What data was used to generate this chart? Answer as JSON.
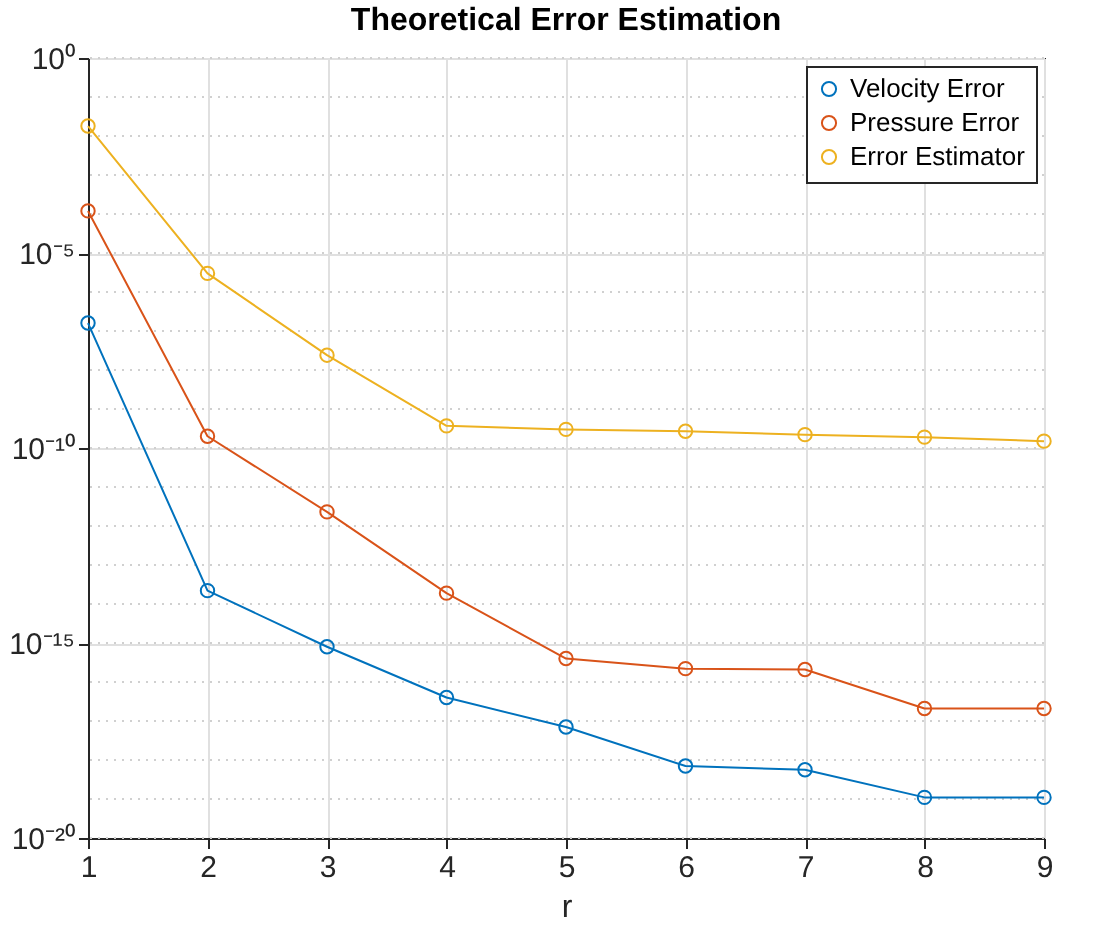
{
  "chart_data": {
    "type": "line",
    "title": "Theoretical Error Estimation",
    "xlabel": "r",
    "x": [
      1,
      2,
      3,
      4,
      5,
      6,
      7,
      8,
      9
    ],
    "series": [
      {
        "name": "Velocity Error",
        "color": "#0072bd",
        "values": [
          1.6e-07,
          2.2e-14,
          8e-16,
          4e-17,
          7e-18,
          7e-19,
          5.6e-19,
          1.1e-19,
          1.1e-19
        ]
      },
      {
        "name": "Pressure Error",
        "color": "#d95319",
        "values": [
          0.00012,
          2e-10,
          2.3e-12,
          1.9e-14,
          4e-16,
          2.2e-16,
          2.1e-16,
          2.1e-17,
          2.1e-17
        ]
      },
      {
        "name": "Error Estimator",
        "color": "#edb120",
        "values": [
          0.018,
          3e-06,
          2.4e-08,
          3.7e-10,
          3e-10,
          2.7e-10,
          2.2e-10,
          1.9e-10,
          1.5e-10
        ]
      }
    ],
    "log": "y",
    "xlim": [
      1,
      9
    ],
    "xticks": [
      1,
      2,
      3,
      4,
      5,
      6,
      7,
      8,
      9
    ],
    "ylim": [
      1e-20,
      1
    ],
    "yticks": [
      {
        "value": 1e-20,
        "label": "10⁻²⁰"
      },
      {
        "value": 1e-15,
        "label": "10⁻¹⁵"
      },
      {
        "value": 1e-10,
        "label": "10⁻¹⁰"
      },
      {
        "value": 1e-05,
        "label": "10⁻⁵"
      },
      {
        "value": 1,
        "label": "10⁰"
      }
    ],
    "grid": true,
    "legend": "top right",
    "marker": "circle",
    "line_style": "solid"
  }
}
